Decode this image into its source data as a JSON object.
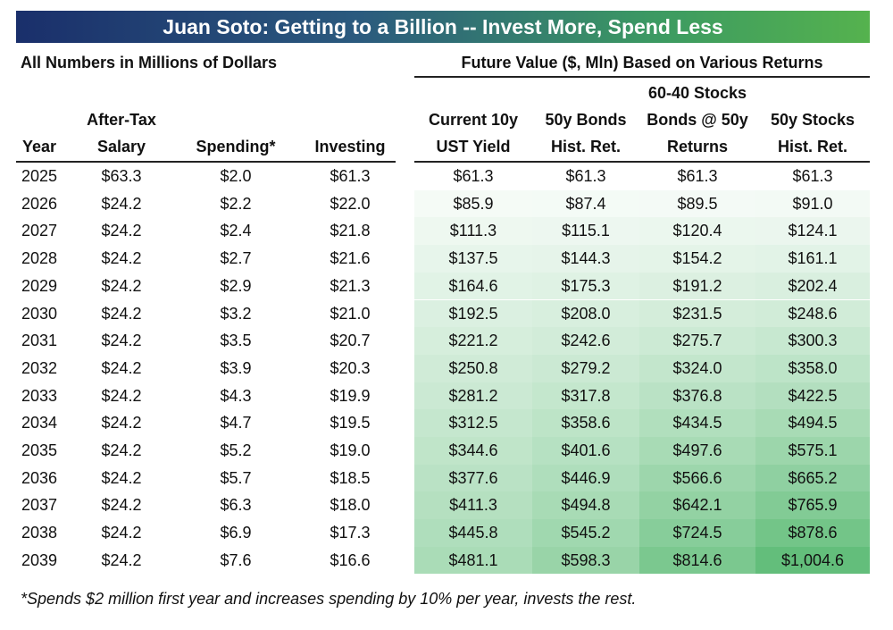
{
  "title": "Juan Soto: Getting to a Billion -- Invest More, Spend Less",
  "subtitle_left": "All Numbers in Millions of Dollars",
  "subtitle_right": "Future Value ($, Mln) Based on Various Returns",
  "headers": {
    "year": "Year",
    "salary_l1": "After-Tax",
    "salary_l2": "Salary",
    "spending": "Spending*",
    "investing": "Investing",
    "ust_l1": "Current 10y",
    "ust_l2": "UST Yield",
    "bonds_l1": "50y Bonds",
    "bonds_l2": "Hist. Ret.",
    "mix_l1": "60-40 Stocks",
    "mix_l2": "Bonds @ 50y",
    "mix_l3": "Returns",
    "stocks_l1": "50y Stocks",
    "stocks_l2": "Hist. Ret."
  },
  "footnote": "*Spends $2 million first year and increases spending by 10% per year, invests the rest.",
  "colors": {
    "shade_low": "#ffffff",
    "shade_high": "#63be7b"
  },
  "chart_data": {
    "type": "table",
    "columns": [
      "Year",
      "After-Tax Salary",
      "Spending*",
      "Investing",
      "Current 10y UST Yield",
      "50y Bonds Hist. Ret.",
      "60-40 Stocks Bonds @ 50y Returns",
      "50y Stocks Hist. Ret."
    ],
    "rows": [
      [
        "2025",
        "$63.3",
        "$2.0",
        "$61.3",
        "$61.3",
        "$61.3",
        "$61.3",
        "$61.3"
      ],
      [
        "2026",
        "$24.2",
        "$2.2",
        "$22.0",
        "$85.9",
        "$87.4",
        "$89.5",
        "$91.0"
      ],
      [
        "2027",
        "$24.2",
        "$2.4",
        "$21.8",
        "$111.3",
        "$115.1",
        "$120.4",
        "$124.1"
      ],
      [
        "2028",
        "$24.2",
        "$2.7",
        "$21.6",
        "$137.5",
        "$144.3",
        "$154.2",
        "$161.1"
      ],
      [
        "2029",
        "$24.2",
        "$2.9",
        "$21.3",
        "$164.6",
        "$175.3",
        "$191.2",
        "$202.4"
      ],
      [
        "2030",
        "$24.2",
        "$3.2",
        "$21.0",
        "$192.5",
        "$208.0",
        "$231.5",
        "$248.6"
      ],
      [
        "2031",
        "$24.2",
        "$3.5",
        "$20.7",
        "$221.2",
        "$242.6",
        "$275.7",
        "$300.3"
      ],
      [
        "2032",
        "$24.2",
        "$3.9",
        "$20.3",
        "$250.8",
        "$279.2",
        "$324.0",
        "$358.0"
      ],
      [
        "2033",
        "$24.2",
        "$4.3",
        "$19.9",
        "$281.2",
        "$317.8",
        "$376.8",
        "$422.5"
      ],
      [
        "2034",
        "$24.2",
        "$4.7",
        "$19.5",
        "$312.5",
        "$358.6",
        "$434.5",
        "$494.5"
      ],
      [
        "2035",
        "$24.2",
        "$5.2",
        "$19.0",
        "$344.6",
        "$401.6",
        "$497.6",
        "$575.1"
      ],
      [
        "2036",
        "$24.2",
        "$5.7",
        "$18.5",
        "$377.6",
        "$446.9",
        "$566.6",
        "$665.2"
      ],
      [
        "2037",
        "$24.2",
        "$6.3",
        "$18.0",
        "$411.3",
        "$494.8",
        "$642.1",
        "$765.9"
      ],
      [
        "2038",
        "$24.2",
        "$6.9",
        "$17.3",
        "$445.8",
        "$545.2",
        "$724.5",
        "$878.6"
      ],
      [
        "2039",
        "$24.2",
        "$7.6",
        "$16.6",
        "$481.1",
        "$598.3",
        "$814.6",
        "$1,004.6"
      ]
    ],
    "heat_columns": [
      4,
      5,
      6,
      7
    ],
    "heat_values": [
      [
        61.3,
        61.3,
        61.3,
        61.3
      ],
      [
        85.9,
        87.4,
        89.5,
        91.0
      ],
      [
        111.3,
        115.1,
        120.4,
        124.1
      ],
      [
        137.5,
        144.3,
        154.2,
        161.1
      ],
      [
        164.6,
        175.3,
        191.2,
        202.4
      ],
      [
        192.5,
        208.0,
        231.5,
        248.6
      ],
      [
        221.2,
        242.6,
        275.7,
        300.3
      ],
      [
        250.8,
        279.2,
        324.0,
        358.0
      ],
      [
        281.2,
        317.8,
        376.8,
        422.5
      ],
      [
        312.5,
        358.6,
        434.5,
        494.5
      ],
      [
        344.6,
        401.6,
        497.6,
        575.1
      ],
      [
        377.6,
        446.9,
        566.6,
        665.2
      ],
      [
        411.3,
        494.8,
        642.1,
        765.9
      ],
      [
        445.8,
        545.2,
        724.5,
        878.6
      ],
      [
        481.1,
        598.3,
        814.6,
        1004.6
      ]
    ]
  }
}
